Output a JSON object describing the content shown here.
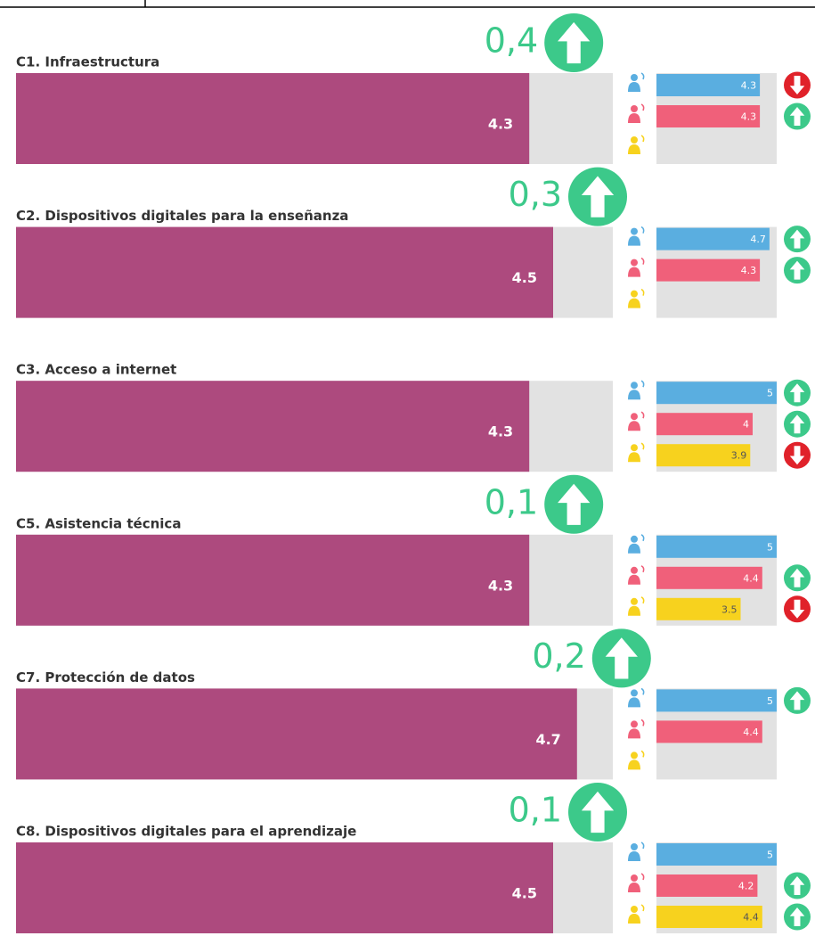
{
  "chart_data": [
    {
      "type": "bar",
      "title": "C1. Infraestructura",
      "value": 4.3,
      "change": 0.4,
      "change_label": "0,4",
      "xlim": [
        0,
        5
      ],
      "color": "#ad4a7e",
      "series": [
        {
          "color": "#5aaee0",
          "value": 4.3,
          "trend": "down"
        },
        {
          "color": "#f0607a",
          "value": 4.3,
          "trend": "up"
        },
        {
          "color": "#f7d21e",
          "value": null,
          "trend": null
        }
      ]
    },
    {
      "type": "bar",
      "title": "C2. Dispositivos digitales para la enseñanza",
      "value": 4.5,
      "change": 0.3,
      "change_label": "0,3",
      "xlim": [
        0,
        5
      ],
      "color": "#ad4a7e",
      "series": [
        {
          "color": "#5aaee0",
          "value": 4.7,
          "trend": "up"
        },
        {
          "color": "#f0607a",
          "value": 4.3,
          "trend": "up"
        },
        {
          "color": "#f7d21e",
          "value": null,
          "trend": null
        }
      ]
    },
    {
      "type": "bar",
      "title": "C3. Acceso a internet",
      "value": 4.3,
      "change": null,
      "change_label": null,
      "xlim": [
        0,
        5
      ],
      "color": "#ad4a7e",
      "series": [
        {
          "color": "#5aaee0",
          "value": 5,
          "trend": "up"
        },
        {
          "color": "#f0607a",
          "value": 4,
          "trend": "up"
        },
        {
          "color": "#f7d21e",
          "value": 3.9,
          "trend": "down"
        }
      ]
    },
    {
      "type": "bar",
      "title": "C5. Asistencia técnica",
      "value": 4.3,
      "change": 0.1,
      "change_label": "0,1",
      "xlim": [
        0,
        5
      ],
      "color": "#ad4a7e",
      "series": [
        {
          "color": "#5aaee0",
          "value": 5,
          "trend": null
        },
        {
          "color": "#f0607a",
          "value": 4.4,
          "trend": "up"
        },
        {
          "color": "#f7d21e",
          "value": 3.5,
          "trend": "down"
        }
      ]
    },
    {
      "type": "bar",
      "title": "C7. Protección de datos",
      "value": 4.7,
      "change": 0.2,
      "change_label": "0,2",
      "xlim": [
        0,
        5
      ],
      "color": "#ad4a7e",
      "series": [
        {
          "color": "#5aaee0",
          "value": 5,
          "trend": "up"
        },
        {
          "color": "#f0607a",
          "value": 4.4,
          "trend": null
        },
        {
          "color": "#f7d21e",
          "value": null,
          "trend": null
        }
      ]
    },
    {
      "type": "bar",
      "title": "C8. Dispositivos digitales para el aprendizaje",
      "value": 4.5,
      "change": 0.1,
      "change_label": "0,1",
      "xlim": [
        0,
        5
      ],
      "color": "#ad4a7e",
      "series": [
        {
          "color": "#5aaee0",
          "value": 5,
          "trend": null
        },
        {
          "color": "#f0607a",
          "value": 4.2,
          "trend": "up"
        },
        {
          "color": "#f7d21e",
          "value": 4.4,
          "trend": "up"
        }
      ]
    }
  ]
}
